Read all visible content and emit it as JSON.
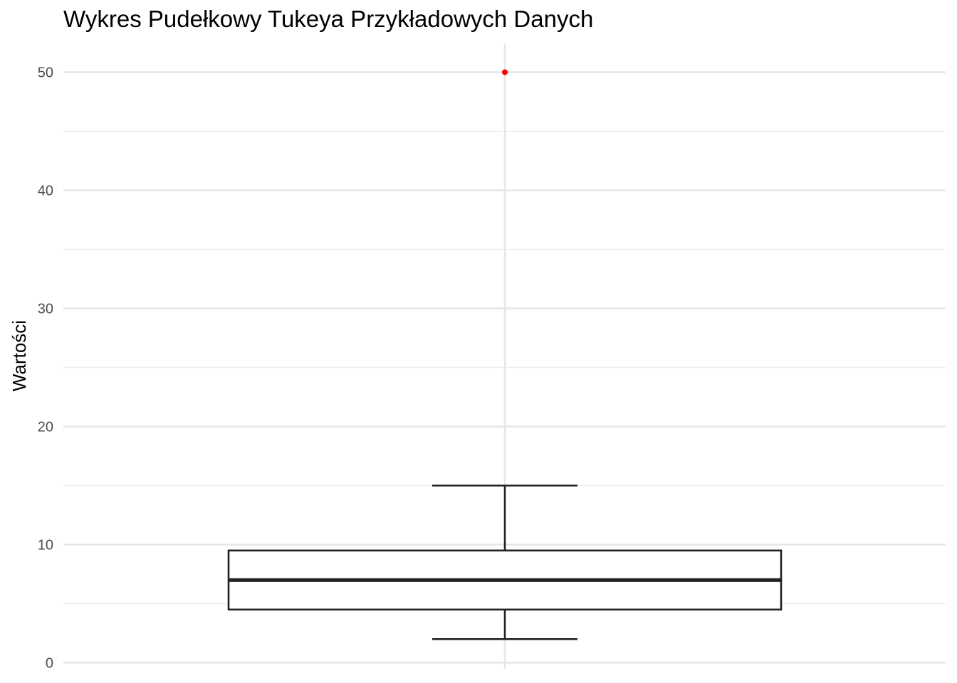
{
  "chart_data": {
    "type": "boxplot",
    "title": "Wykres Pudełkowy Tukeya Przykładowych Danych",
    "xlabel": "",
    "ylabel": "Wartości",
    "ylim": [
      0,
      52.4
    ],
    "yticks": [
      0,
      10,
      20,
      30,
      40,
      50
    ],
    "grid": true,
    "box": {
      "lower_whisker": 2,
      "q1": 4.5,
      "median": 7,
      "q3": 9.5,
      "upper_whisker": 15,
      "outliers": [
        50
      ]
    },
    "colors": {
      "box_stroke": "#222222",
      "outlier": "#ff0000",
      "grid_major": "#e6e6e6",
      "grid_minor": "#ececec"
    }
  }
}
